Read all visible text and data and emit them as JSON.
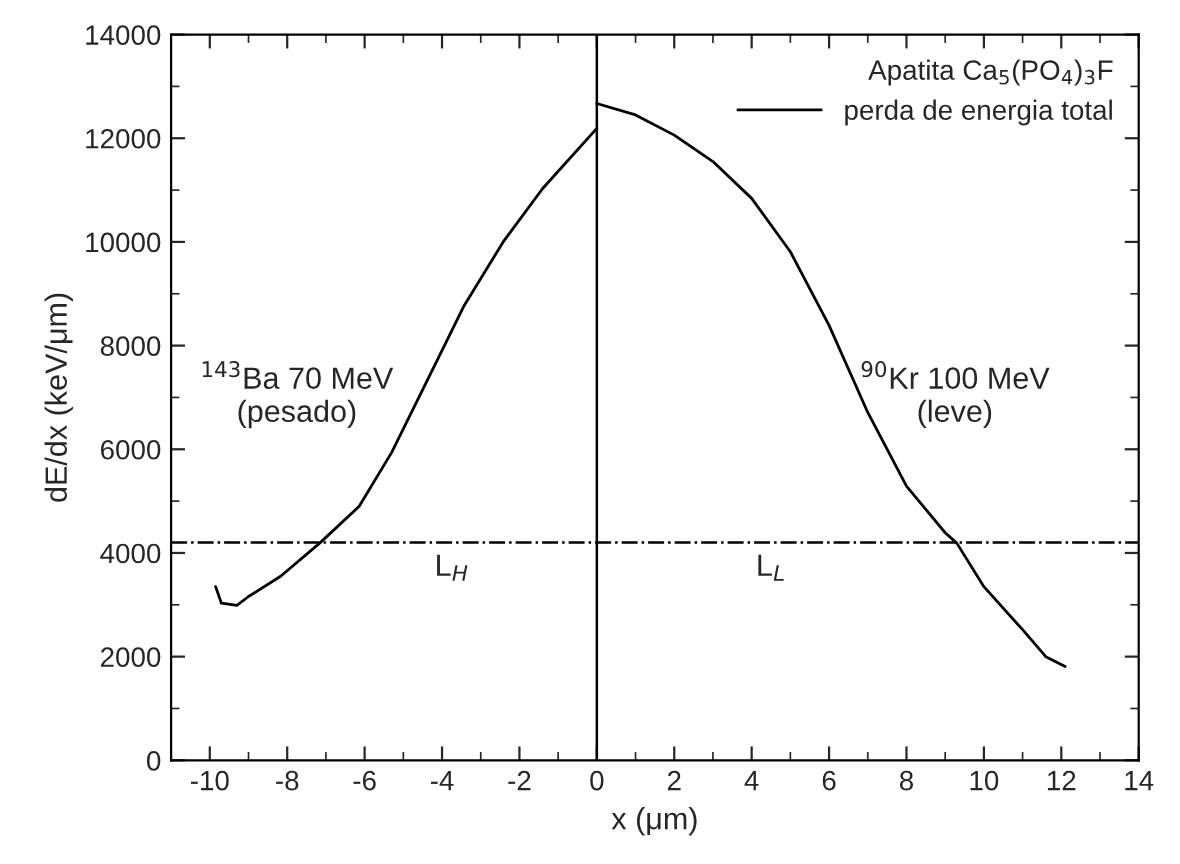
{
  "chart_data": {
    "type": "line",
    "xlabel": "x (μm)",
    "ylabel": "dE/dx (keV/μm)",
    "legend_title": "Apatita Ca$_{5}$(PO$_{4}$)$_{3}$F",
    "series": [
      {
        "name": "perda de energia total",
        "color": "#000000",
        "x": [
          -9.85,
          -9.7,
          -9.3,
          -9.0,
          -8.17,
          -7.16,
          -6.14,
          -5.3,
          -4.79,
          -4.11,
          -3.43,
          -2.42,
          -1.4,
          0
        ],
        "values": [
          3350,
          3030,
          2990,
          3160,
          3550,
          4190,
          4900,
          5940,
          6710,
          7740,
          8770,
          10000,
          11030,
          12190
        ]
      },
      {
        "color": "#000000",
        "x": [
          0,
          1,
          2,
          3,
          4,
          5,
          6,
          7,
          8,
          9,
          9.3,
          10,
          11,
          11.6,
          12.1
        ],
        "values": [
          12670,
          12450,
          12060,
          11550,
          10840,
          9810,
          8390,
          6710,
          5290,
          4390,
          4190,
          3350,
          2520,
          2000,
          1810
        ]
      }
    ],
    "xlim": [
      -11,
      14
    ],
    "xticks": [
      -10,
      -8,
      -6,
      -4,
      -2,
      0,
      2,
      4,
      6,
      8,
      10,
      12,
      14
    ],
    "ylim": [
      0,
      14000
    ],
    "yticks": [
      0,
      2000,
      4000,
      6000,
      8000,
      10000,
      12000,
      14000
    ],
    "ref_lines": [
      {
        "axis": "x",
        "value": 0,
        "color": "#000000",
        "line_style": "solid"
      },
      {
        "axis": "y",
        "value": 4200,
        "color": "#000000",
        "line_style": "dashdot"
      }
    ],
    "annotations": [
      "$^{143}$Ba 70 MeV\n(pesado)",
      "$^{90}$Kr 100 MeV\n(leve)",
      "L$_{H}$",
      "L$_{L}$"
    ],
    "legend": "top right",
    "grid": false,
    "marker": "none",
    "line_style": "solid"
  }
}
